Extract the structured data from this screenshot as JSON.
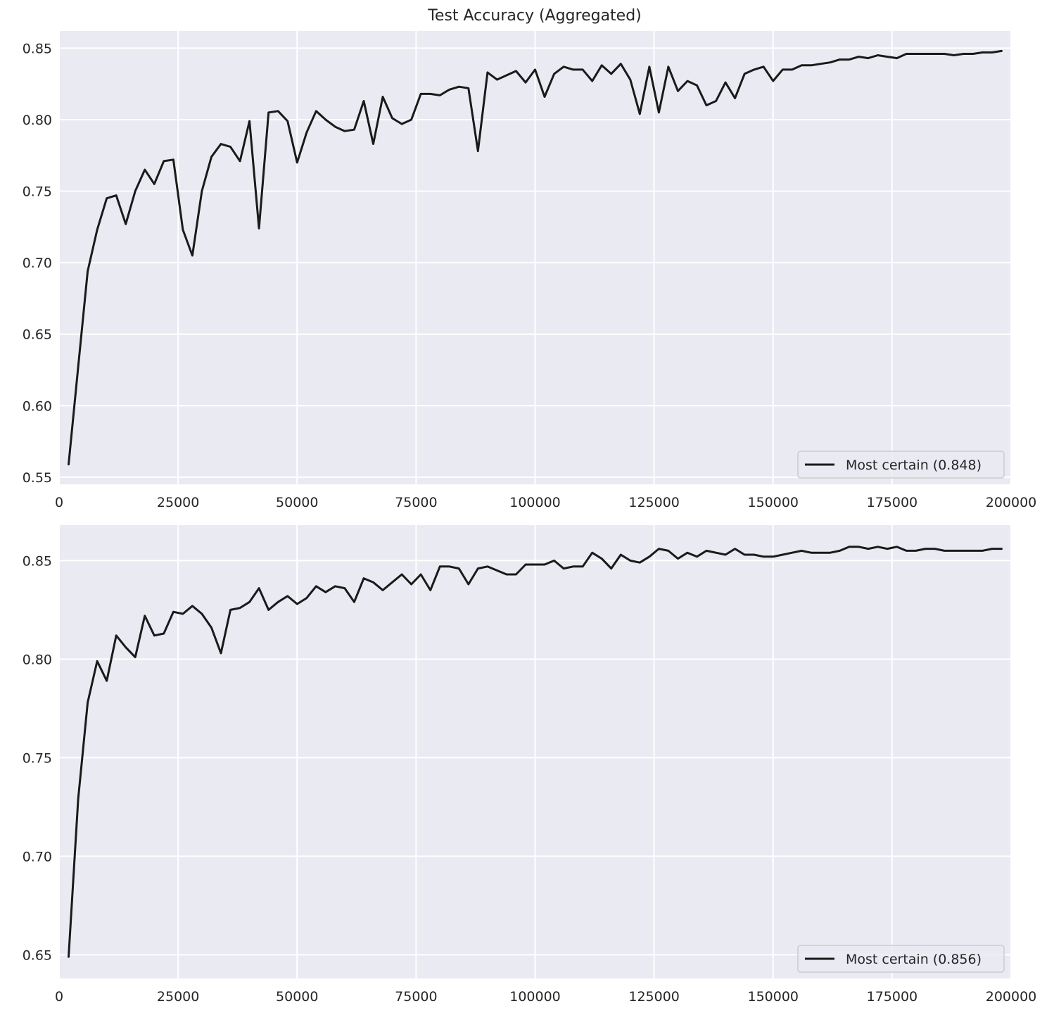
{
  "chart_data": [
    {
      "type": "line",
      "title": "Test Accuracy (Aggregated)",
      "xlabel": "",
      "ylabel": "",
      "xlim": [
        0,
        200000
      ],
      "ylim": [
        0.545,
        0.862
      ],
      "xticks": [
        0,
        25000,
        50000,
        75000,
        100000,
        125000,
        150000,
        175000,
        200000
      ],
      "xtick_labels": [
        "0",
        "25000",
        "50000",
        "75000",
        "100000",
        "125000",
        "150000",
        "175000",
        "200000"
      ],
      "yticks": [
        0.55,
        0.6,
        0.65,
        0.7,
        0.75,
        0.8,
        0.85
      ],
      "ytick_labels": [
        "0.55",
        "0.60",
        "0.65",
        "0.70",
        "0.75",
        "0.80",
        "0.85"
      ],
      "grid": true,
      "legend_position": "lower-right",
      "series": [
        {
          "name": "Most certain (0.848)",
          "color": "#1a1a1a",
          "x": [
            2000,
            4000,
            6000,
            8000,
            10000,
            12000,
            14000,
            16000,
            18000,
            20000,
            22000,
            24000,
            26000,
            28000,
            30000,
            32000,
            34000,
            36000,
            38000,
            40000,
            42000,
            44000,
            46000,
            48000,
            50000,
            52000,
            54000,
            56000,
            58000,
            60000,
            62000,
            64000,
            66000,
            68000,
            70000,
            72000,
            74000,
            76000,
            78000,
            80000,
            82000,
            84000,
            86000,
            88000,
            90000,
            92000,
            94000,
            96000,
            98000,
            100000,
            102000,
            104000,
            106000,
            108000,
            110000,
            112000,
            114000,
            116000,
            118000,
            120000,
            122000,
            124000,
            126000,
            128000,
            130000,
            132000,
            134000,
            136000,
            138000,
            140000,
            142000,
            144000,
            146000,
            148000,
            150000,
            152000,
            154000,
            156000,
            158000,
            160000,
            162000,
            164000,
            166000,
            168000,
            170000,
            172000,
            174000,
            176000,
            178000,
            180000,
            182000,
            184000,
            186000,
            188000,
            190000,
            192000,
            194000,
            196000,
            198000
          ],
          "values": [
            0.559,
            0.627,
            0.694,
            0.723,
            0.745,
            0.747,
            0.727,
            0.75,
            0.765,
            0.755,
            0.771,
            0.772,
            0.723,
            0.705,
            0.75,
            0.774,
            0.783,
            0.781,
            0.771,
            0.799,
            0.724,
            0.805,
            0.806,
            0.799,
            0.77,
            0.791,
            0.806,
            0.8,
            0.795,
            0.792,
            0.793,
            0.813,
            0.783,
            0.816,
            0.801,
            0.797,
            0.8,
            0.818,
            0.818,
            0.817,
            0.821,
            0.823,
            0.822,
            0.778,
            0.833,
            0.828,
            0.831,
            0.834,
            0.826,
            0.835,
            0.816,
            0.832,
            0.837,
            0.835,
            0.835,
            0.827,
            0.838,
            0.832,
            0.839,
            0.828,
            0.804,
            0.837,
            0.805,
            0.837,
            0.82,
            0.827,
            0.824,
            0.81,
            0.813,
            0.826,
            0.815,
            0.832,
            0.835,
            0.837,
            0.827,
            0.835,
            0.835,
            0.838,
            0.838,
            0.839,
            0.84,
            0.842,
            0.842,
            0.844,
            0.843,
            0.845,
            0.844,
            0.843,
            0.846,
            0.846,
            0.846,
            0.846,
            0.846,
            0.845,
            0.846,
            0.846,
            0.847,
            0.847,
            0.848
          ]
        }
      ]
    },
    {
      "type": "line",
      "title": "",
      "xlabel": "",
      "ylabel": "",
      "xlim": [
        0,
        200000
      ],
      "ylim": [
        0.638,
        0.868
      ],
      "xticks": [
        0,
        25000,
        50000,
        75000,
        100000,
        125000,
        150000,
        175000,
        200000
      ],
      "xtick_labels": [
        "0",
        "25000",
        "50000",
        "75000",
        "100000",
        "125000",
        "150000",
        "175000",
        "200000"
      ],
      "yticks": [
        0.65,
        0.7,
        0.75,
        0.8,
        0.85
      ],
      "ytick_labels": [
        "0.65",
        "0.70",
        "0.75",
        "0.80",
        "0.85"
      ],
      "grid": true,
      "legend_position": "lower-right",
      "series": [
        {
          "name": "Most certain (0.856)",
          "color": "#1a1a1a",
          "x": [
            2000,
            4000,
            6000,
            8000,
            10000,
            12000,
            14000,
            16000,
            18000,
            20000,
            22000,
            24000,
            26000,
            28000,
            30000,
            32000,
            34000,
            36000,
            38000,
            40000,
            42000,
            44000,
            46000,
            48000,
            50000,
            52000,
            54000,
            56000,
            58000,
            60000,
            62000,
            64000,
            66000,
            68000,
            70000,
            72000,
            74000,
            76000,
            78000,
            80000,
            82000,
            84000,
            86000,
            88000,
            90000,
            92000,
            94000,
            96000,
            98000,
            100000,
            102000,
            104000,
            106000,
            108000,
            110000,
            112000,
            114000,
            116000,
            118000,
            120000,
            122000,
            124000,
            126000,
            128000,
            130000,
            132000,
            134000,
            136000,
            138000,
            140000,
            142000,
            144000,
            146000,
            148000,
            150000,
            152000,
            154000,
            156000,
            158000,
            160000,
            162000,
            164000,
            166000,
            168000,
            170000,
            172000,
            174000,
            176000,
            178000,
            180000,
            182000,
            184000,
            186000,
            188000,
            190000,
            192000,
            194000,
            196000,
            198000
          ],
          "values": [
            0.649,
            0.729,
            0.778,
            0.799,
            0.789,
            0.812,
            0.806,
            0.801,
            0.822,
            0.812,
            0.813,
            0.824,
            0.823,
            0.827,
            0.823,
            0.816,
            0.803,
            0.825,
            0.826,
            0.829,
            0.836,
            0.825,
            0.829,
            0.832,
            0.828,
            0.831,
            0.837,
            0.834,
            0.837,
            0.836,
            0.829,
            0.841,
            0.839,
            0.835,
            0.839,
            0.843,
            0.838,
            0.843,
            0.835,
            0.847,
            0.847,
            0.846,
            0.838,
            0.846,
            0.847,
            0.845,
            0.843,
            0.843,
            0.848,
            0.848,
            0.848,
            0.85,
            0.846,
            0.847,
            0.847,
            0.854,
            0.851,
            0.846,
            0.853,
            0.85,
            0.849,
            0.852,
            0.856,
            0.855,
            0.851,
            0.854,
            0.852,
            0.855,
            0.854,
            0.853,
            0.856,
            0.853,
            0.853,
            0.852,
            0.852,
            0.853,
            0.854,
            0.855,
            0.854,
            0.854,
            0.854,
            0.855,
            0.857,
            0.857,
            0.856,
            0.857,
            0.856,
            0.857,
            0.855,
            0.855,
            0.856,
            0.856,
            0.855,
            0.855,
            0.855,
            0.855,
            0.855,
            0.856,
            0.856
          ]
        }
      ]
    }
  ]
}
